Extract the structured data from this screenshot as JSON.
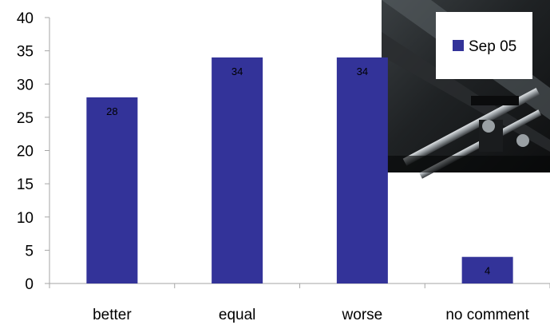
{
  "chart_data": {
    "type": "bar",
    "title": "",
    "xlabel": "",
    "ylabel": "",
    "categories": [
      "better",
      "equal",
      "worse",
      "no comment"
    ],
    "series": [
      {
        "name": "Sep 05",
        "values": [
          28,
          34,
          34,
          4
        ],
        "color": "#333399"
      }
    ],
    "ylim": [
      0,
      40
    ],
    "yticks": [
      0,
      5,
      10,
      15,
      20,
      25,
      30,
      35,
      40
    ],
    "grid": false,
    "data_labels": true,
    "legend_position": "top-right"
  },
  "colors": {
    "bar": "#333399",
    "axis": "#a6a6a6",
    "background": "#ffffff"
  },
  "decorations": {
    "photo_icon": "printer-rollers-photo"
  }
}
